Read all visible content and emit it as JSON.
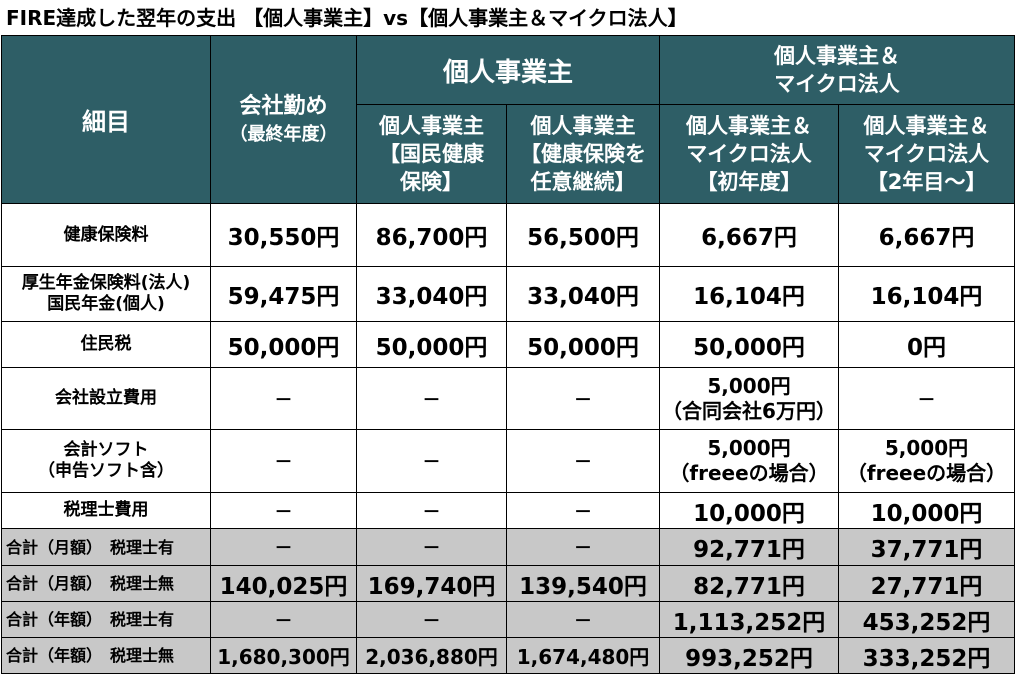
{
  "title": "FIRE達成した翌年の支出 【個人事業主】vs【個人事業主＆マイクロ法人】",
  "header": {
    "item": "細目",
    "company": {
      "line1": "会社勤め",
      "line2": "（最終年度）"
    },
    "sole_group": "個人事業主",
    "micro_group": {
      "line1": "個人事業主＆",
      "line2": "マイクロ法人"
    },
    "sole_a": {
      "line1": "個人事業主",
      "line2": "【国民健康",
      "line3": "保険】"
    },
    "sole_b": {
      "line1": "個人事業主",
      "line2": "【健康保険を",
      "line3": "任意継続】"
    },
    "micro_a": {
      "line1": "個人事業主＆",
      "line2": "マイクロ法人",
      "line3": "【初年度】"
    },
    "micro_b": {
      "line1": "個人事業主＆",
      "line2": "マイクロ法人",
      "line3": "【2年目～】"
    }
  },
  "rows": [
    {
      "label1": "健康保険料",
      "label2": "",
      "company": "30,550円",
      "sole_a": "86,700円",
      "sole_b": "56,500円",
      "micro_a": "6,667円",
      "micro_a_note": "",
      "micro_b": "6,667円",
      "micro_b_note": ""
    },
    {
      "label1": "厚生年金保険料(法人)",
      "label2": "国民年金(個人)",
      "company": "59,475円",
      "sole_a": "33,040円",
      "sole_b": "33,040円",
      "micro_a": "16,104円",
      "micro_a_note": "",
      "micro_b": "16,104円",
      "micro_b_note": ""
    },
    {
      "label1": "住民税",
      "label2": "",
      "company": "50,000円",
      "sole_a": "50,000円",
      "sole_b": "50,000円",
      "micro_a": "50,000円",
      "micro_a_note": "",
      "micro_b": "0円",
      "micro_b_note": ""
    },
    {
      "label1": "会社設立費用",
      "label2": "",
      "company": "－",
      "sole_a": "－",
      "sole_b": "－",
      "micro_a": "5,000円",
      "micro_a_note": "（合同会社6万円）",
      "micro_b": "－",
      "micro_b_note": ""
    },
    {
      "label1": "会計ソフト",
      "label2": "（申告ソフト含）",
      "company": "－",
      "sole_a": "－",
      "sole_b": "－",
      "micro_a": "5,000円",
      "micro_a_note": "（freeeの場合）",
      "micro_b": "5,000円",
      "micro_b_note": "（freeeの場合）"
    },
    {
      "label1": "税理士費用",
      "label2": "",
      "company": "－",
      "sole_a": "－",
      "sole_b": "－",
      "micro_a": "10,000円",
      "micro_a_note": "",
      "micro_b": "10,000円",
      "micro_b_note": ""
    }
  ],
  "totals": [
    {
      "label": "合計（月額）　税理士有",
      "company": "－",
      "sole_a": "－",
      "sole_b": "－",
      "micro_a": "92,771円",
      "micro_b": "37,771円"
    },
    {
      "label": "合計（月額）　税理士無",
      "company": "140,025円",
      "sole_a": "169,740円",
      "sole_b": "139,540円",
      "micro_a": "82,771円",
      "micro_b": "27,771円"
    },
    {
      "label": "合計（年額）　税理士有",
      "company": "－",
      "sole_a": "－",
      "sole_b": "－",
      "micro_a": "1,113,252円",
      "micro_b": "453,252円"
    },
    {
      "label": "合計（年額）　税理士無",
      "company": "1,680,300円",
      "sole_a": "2,036,880円",
      "sole_b": "1,674,480円",
      "micro_a": "993,252円",
      "micro_b": "333,252円"
    }
  ],
  "colors": {
    "header_bg": "#2e5e66",
    "header_text": "#ffffff",
    "total_bg": "#c8c8c8"
  }
}
